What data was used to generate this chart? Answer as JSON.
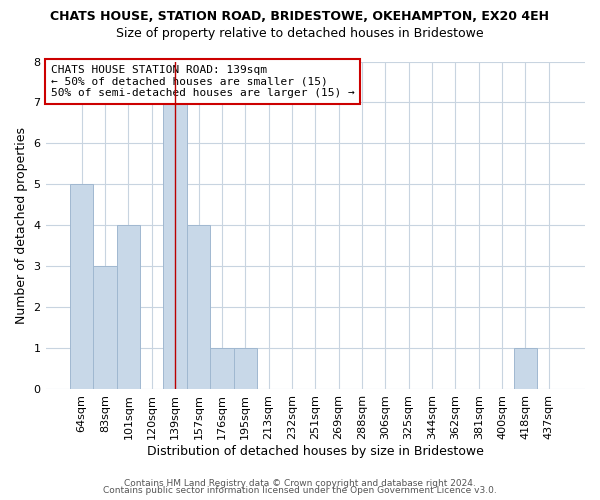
{
  "title": "CHATS HOUSE, STATION ROAD, BRIDESTOWE, OKEHAMPTON, EX20 4EH",
  "subtitle": "Size of property relative to detached houses in Bridestowe",
  "xlabel": "Distribution of detached houses by size in Bridestowe",
  "ylabel": "Number of detached properties",
  "footer_lines": [
    "Contains HM Land Registry data © Crown copyright and database right 2024.",
    "Contains public sector information licensed under the Open Government Licence v3.0."
  ],
  "categories": [
    "64sqm",
    "83sqm",
    "101sqm",
    "120sqm",
    "139sqm",
    "157sqm",
    "176sqm",
    "195sqm",
    "213sqm",
    "232sqm",
    "251sqm",
    "269sqm",
    "288sqm",
    "306sqm",
    "325sqm",
    "344sqm",
    "362sqm",
    "381sqm",
    "400sqm",
    "418sqm",
    "437sqm"
  ],
  "values": [
    5,
    3,
    4,
    0,
    7,
    4,
    1,
    1,
    0,
    0,
    0,
    0,
    0,
    0,
    0,
    0,
    0,
    0,
    0,
    1,
    0
  ],
  "bar_color": "#c8d8e8",
  "bar_edge_color": "#a0b8d0",
  "highlight_index": 4,
  "highlight_line_color": "#bb0000",
  "annotation_box_text_lines": [
    "CHATS HOUSE STATION ROAD: 139sqm",
    "← 50% of detached houses are smaller (15)",
    "50% of semi-detached houses are larger (15) →"
  ],
  "annotation_box_color": "#ffffff",
  "annotation_box_edge_color": "#cc0000",
  "ylim": [
    0,
    8
  ],
  "yticks": [
    0,
    1,
    2,
    3,
    4,
    5,
    6,
    7,
    8
  ],
  "grid_color": "#c8d4e0",
  "background_color": "#ffffff",
  "title_fontsize": 9,
  "subtitle_fontsize": 9,
  "xlabel_fontsize": 9,
  "ylabel_fontsize": 9,
  "tick_fontsize": 8,
  "footer_fontsize": 6.5,
  "annotation_fontsize": 8
}
